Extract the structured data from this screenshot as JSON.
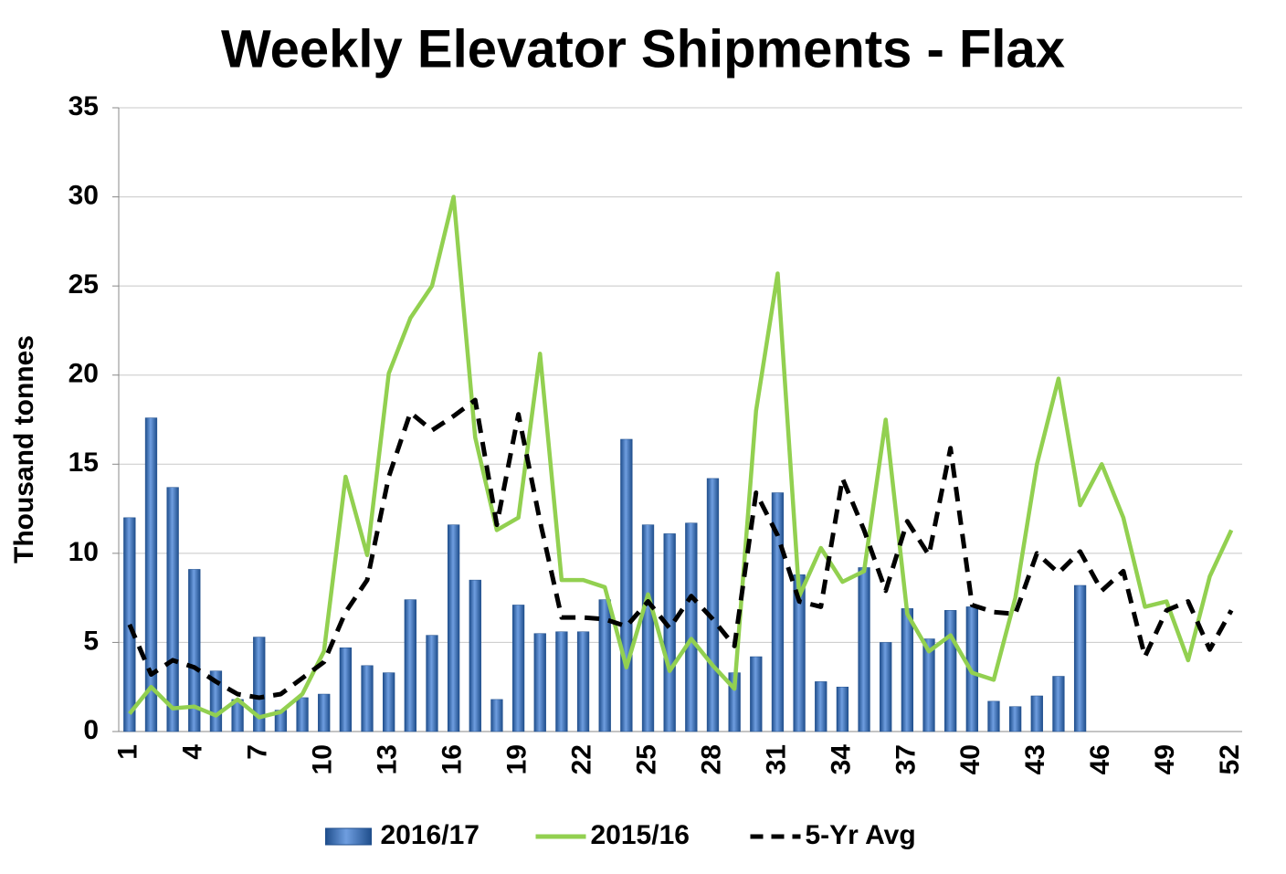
{
  "chart_data": {
    "type": "bar-line",
    "title": "Weekly Elevator Shipments - Flax",
    "y_label": "Thousand tonnes",
    "categories": [
      1,
      null,
      null,
      4,
      null,
      null,
      7,
      null,
      null,
      10,
      null,
      null,
      13,
      null,
      null,
      16,
      null,
      null,
      19,
      null,
      null,
      22,
      null,
      null,
      25,
      null,
      null,
      28,
      null,
      null,
      31,
      null,
      null,
      34,
      null,
      null,
      37,
      null,
      null,
      40,
      null,
      null,
      43,
      null,
      null,
      46,
      null,
      null,
      49,
      null,
      null,
      52
    ],
    "series": [
      {
        "name": "2016/17",
        "type": "bar",
        "color": "#3a6fb8",
        "values": [
          12.0,
          17.6,
          13.7,
          9.1,
          3.4,
          1.8,
          5.3,
          1.2,
          1.9,
          2.1,
          4.7,
          3.7,
          3.3,
          7.4,
          5.4,
          11.6,
          8.5,
          1.8,
          7.1,
          5.5,
          5.6,
          5.6,
          7.4,
          16.4,
          11.6,
          11.1,
          11.7,
          14.2,
          3.3,
          4.2,
          13.4,
          8.8,
          2.8,
          2.5,
          9.2,
          5.0,
          6.9,
          5.2,
          6.8,
          7.0,
          1.7,
          1.4,
          2.0,
          3.1,
          8.2,
          null,
          null,
          null,
          null,
          null,
          null,
          null
        ]
      },
      {
        "name": "2015/16",
        "type": "line",
        "color": "#92d050",
        "dashed": false,
        "values": [
          1.0,
          2.5,
          1.3,
          1.4,
          0.9,
          1.8,
          0.8,
          1.1,
          2.1,
          4.5,
          14.3,
          9.9,
          20.1,
          23.2,
          25.0,
          30.0,
          16.5,
          11.3,
          12.0,
          21.2,
          8.5,
          8.5,
          8.1,
          3.6,
          7.7,
          3.4,
          5.2,
          3.7,
          2.4,
          18.0,
          25.7,
          7.6,
          10.3,
          8.4,
          9.0,
          17.5,
          6.6,
          4.5,
          5.4,
          3.3,
          2.9,
          7.5,
          15.0,
          19.8,
          12.7,
          15.0,
          12.0,
          7.0,
          7.3,
          4.0,
          8.7,
          11.3
        ]
      },
      {
        "name": "5-Yr Avg",
        "type": "line",
        "color": "#000000",
        "dashed": true,
        "values": [
          6.0,
          3.2,
          4.0,
          3.6,
          2.8,
          2.1,
          1.9,
          2.1,
          3.0,
          3.9,
          6.7,
          8.5,
          14.3,
          17.9,
          16.9,
          17.7,
          18.6,
          11.6,
          17.8,
          11.8,
          6.4,
          6.4,
          6.3,
          5.9,
          7.3,
          5.8,
          7.6,
          6.3,
          4.8,
          13.4,
          11.0,
          7.3,
          7.0,
          14.2,
          11.3,
          7.9,
          11.8,
          9.9,
          15.9,
          7.1,
          6.7,
          6.6,
          10.0,
          8.9,
          10.1,
          7.9,
          9.0,
          4.2,
          6.8,
          7.3,
          4.6,
          6.8
        ]
      }
    ],
    "ylim": [
      0,
      35
    ],
    "yticks": [
      0,
      5,
      10,
      15,
      20,
      25,
      30,
      35
    ],
    "grid": true,
    "legend": "bottom"
  }
}
